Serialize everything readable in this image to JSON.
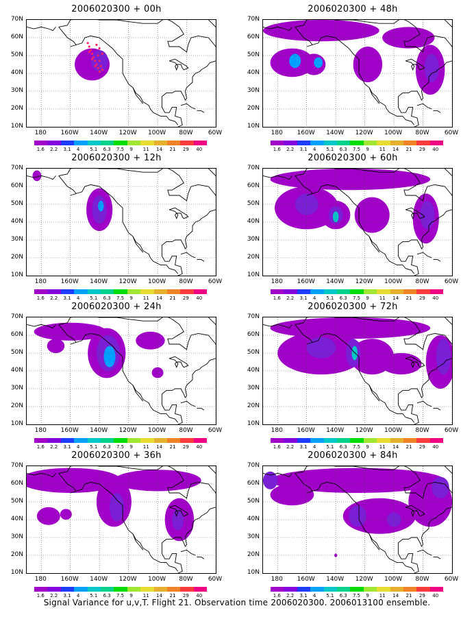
{
  "figure": {
    "caption": "Signal Variance for u,v,T. Flight 21. Observation time 2006020300. 2006013100 ensemble.",
    "lat_labels": [
      "70N",
      "60N",
      "50N",
      "40N",
      "30N",
      "20N",
      "10N"
    ],
    "lon_labels": [
      "180",
      "160W",
      "140W",
      "120W",
      "100W",
      "80W",
      "60W"
    ],
    "colorbar": {
      "colors": [
        "#a000c8",
        "#8200dc",
        "#1e3cff",
        "#00a0ff",
        "#00c8c8",
        "#00d28c",
        "#00dc00",
        "#a0e632",
        "#e6dc32",
        "#e6af2d",
        "#f08228",
        "#fa3c3c",
        "#f00082"
      ],
      "labels": [
        "1.6",
        "2.2",
        "3.1",
        "4",
        "5.1",
        "6.3",
        "7.5",
        "9",
        "11",
        "14",
        "21",
        "29",
        "40"
      ]
    },
    "map": {
      "lon_range": [
        -190,
        -60
      ],
      "lat_range": [
        10,
        70
      ],
      "grid": "dotted"
    },
    "panels": [
      {
        "title": "2006020300 + 00h",
        "obs_points": true
      },
      {
        "title": "2006020300 + 48h"
      },
      {
        "title": "2006020300 + 12h"
      },
      {
        "title": "2006020300 + 60h"
      },
      {
        "title": "2006020300 + 24h"
      },
      {
        "title": "2006020300 + 72h"
      },
      {
        "title": "2006020300 + 36h"
      },
      {
        "title": "2006020300 + 84h"
      }
    ]
  },
  "blobs": {
    "p0": [
      {
        "lon": -145,
        "lat": 45,
        "rx": 12,
        "ry": 9,
        "lvl": 0
      },
      {
        "lon": -140,
        "lat": 47,
        "rx": 6,
        "ry": 6,
        "lvl": 1
      }
    ],
    "p1": [
      {
        "lon": -150,
        "lat": 64,
        "rx": 40,
        "ry": 6,
        "lvl": 0
      },
      {
        "lon": -170,
        "lat": 46,
        "rx": 15,
        "ry": 8,
        "lvl": 0
      },
      {
        "lon": -155,
        "lat": 45,
        "rx": 8,
        "ry": 6,
        "lvl": 0
      },
      {
        "lon": -118,
        "lat": 45,
        "rx": 10,
        "ry": 10,
        "lvl": 0
      },
      {
        "lon": -90,
        "lat": 60,
        "rx": 18,
        "ry": 6,
        "lvl": 0
      },
      {
        "lon": -75,
        "lat": 42,
        "rx": 10,
        "ry": 14,
        "lvl": 0
      },
      {
        "lon": -74,
        "lat": 43,
        "rx": 5,
        "ry": 8,
        "lvl": 1
      },
      {
        "lon": -168,
        "lat": 47,
        "rx": 4,
        "ry": 4,
        "lvl": 2
      },
      {
        "lon": -152,
        "lat": 46,
        "rx": 3,
        "ry": 3,
        "lvl": 2
      }
    ],
    "p2": [
      {
        "lon": -183,
        "lat": 66,
        "rx": 3,
        "ry": 3,
        "lvl": 0
      },
      {
        "lon": -140,
        "lat": 47,
        "rx": 9,
        "ry": 12,
        "lvl": 0
      },
      {
        "lon": -140,
        "lat": 47,
        "rx": 5,
        "ry": 8,
        "lvl": 1
      },
      {
        "lon": -139,
        "lat": 49,
        "rx": 2,
        "ry": 3,
        "lvl": 2
      }
    ],
    "p3": [
      {
        "lon": -130,
        "lat": 64,
        "rx": 55,
        "ry": 6,
        "lvl": 0
      },
      {
        "lon": -160,
        "lat": 48,
        "rx": 22,
        "ry": 12,
        "lvl": 0
      },
      {
        "lon": -140,
        "lat": 44,
        "rx": 10,
        "ry": 8,
        "lvl": 0
      },
      {
        "lon": -115,
        "lat": 44,
        "rx": 12,
        "ry": 10,
        "lvl": 0
      },
      {
        "lon": -78,
        "lat": 42,
        "rx": 9,
        "ry": 14,
        "lvl": 0
      },
      {
        "lon": -160,
        "lat": 50,
        "rx": 8,
        "ry": 6,
        "lvl": 1
      },
      {
        "lon": -140,
        "lat": 44,
        "rx": 5,
        "ry": 5,
        "lvl": 1
      },
      {
        "lon": -140,
        "lat": 43,
        "rx": 2,
        "ry": 3,
        "lvl": 3
      },
      {
        "lon": -77,
        "lat": 44,
        "rx": 5,
        "ry": 8,
        "lvl": 1
      }
    ],
    "p4": [
      {
        "lon": -160,
        "lat": 62,
        "rx": 25,
        "ry": 5,
        "lvl": 0
      },
      {
        "lon": -170,
        "lat": 54,
        "rx": 6,
        "ry": 4,
        "lvl": 0
      },
      {
        "lon": -135,
        "lat": 50,
        "rx": 13,
        "ry": 14,
        "lvl": 0
      },
      {
        "lon": -105,
        "lat": 57,
        "rx": 10,
        "ry": 5,
        "lvl": 0
      },
      {
        "lon": -100,
        "lat": 39,
        "rx": 4,
        "ry": 3,
        "lvl": 0
      },
      {
        "lon": -134,
        "lat": 50,
        "rx": 8,
        "ry": 10,
        "lvl": 1
      },
      {
        "lon": -133,
        "lat": 48,
        "rx": 4,
        "ry": 6,
        "lvl": 2
      }
    ],
    "p5": [
      {
        "lon": -130,
        "lat": 64,
        "rx": 55,
        "ry": 6,
        "lvl": 0
      },
      {
        "lon": -150,
        "lat": 50,
        "rx": 30,
        "ry": 12,
        "lvl": 0
      },
      {
        "lon": -115,
        "lat": 48,
        "rx": 15,
        "ry": 10,
        "lvl": 0
      },
      {
        "lon": -95,
        "lat": 44,
        "rx": 14,
        "ry": 6,
        "lvl": 0
      },
      {
        "lon": -68,
        "lat": 45,
        "rx": 10,
        "ry": 15,
        "lvl": 0
      },
      {
        "lon": -150,
        "lat": 53,
        "rx": 10,
        "ry": 6,
        "lvl": 1
      },
      {
        "lon": -128,
        "lat": 50,
        "rx": 5,
        "ry": 8,
        "lvl": 1
      },
      {
        "lon": -66,
        "lat": 48,
        "rx": 5,
        "ry": 10,
        "lvl": 1
      },
      {
        "lon": -127,
        "lat": 50,
        "rx": 2,
        "ry": 4,
        "lvl": 3
      }
    ],
    "p6": [
      {
        "lon": -160,
        "lat": 62,
        "rx": 35,
        "ry": 7,
        "lvl": 0
      },
      {
        "lon": -175,
        "lat": 42,
        "rx": 8,
        "ry": 5,
        "lvl": 0
      },
      {
        "lon": -163,
        "lat": 43,
        "rx": 4,
        "ry": 3,
        "lvl": 0
      },
      {
        "lon": -130,
        "lat": 50,
        "rx": 12,
        "ry": 14,
        "lvl": 0
      },
      {
        "lon": -85,
        "lat": 40,
        "rx": 10,
        "ry": 12,
        "lvl": 0
      },
      {
        "lon": -100,
        "lat": 62,
        "rx": 30,
        "ry": 6,
        "lvl": 0
      },
      {
        "lon": -128,
        "lat": 47,
        "rx": 5,
        "ry": 8,
        "lvl": 1
      },
      {
        "lon": -86,
        "lat": 40,
        "rx": 4,
        "ry": 6,
        "lvl": 1
      }
    ],
    "p7": [
      {
        "lon": -125,
        "lat": 62,
        "rx": 60,
        "ry": 7,
        "lvl": 0
      },
      {
        "lon": -110,
        "lat": 42,
        "rx": 25,
        "ry": 10,
        "lvl": 0
      },
      {
        "lon": -170,
        "lat": 54,
        "rx": 15,
        "ry": 6,
        "lvl": 0
      },
      {
        "lon": -75,
        "lat": 50,
        "rx": 15,
        "ry": 14,
        "lvl": 0
      },
      {
        "lon": -125,
        "lat": 42,
        "rx": 6,
        "ry": 6,
        "lvl": 1
      },
      {
        "lon": -100,
        "lat": 40,
        "rx": 5,
        "ry": 4,
        "lvl": 1
      },
      {
        "lon": -68,
        "lat": 58,
        "rx": 6,
        "ry": 6,
        "lvl": 1
      },
      {
        "lon": -185,
        "lat": 62,
        "rx": 5,
        "ry": 5,
        "lvl": 1
      },
      {
        "lon": -140,
        "lat": 20,
        "rx": 1,
        "ry": 1,
        "lvl": 0
      }
    ]
  }
}
